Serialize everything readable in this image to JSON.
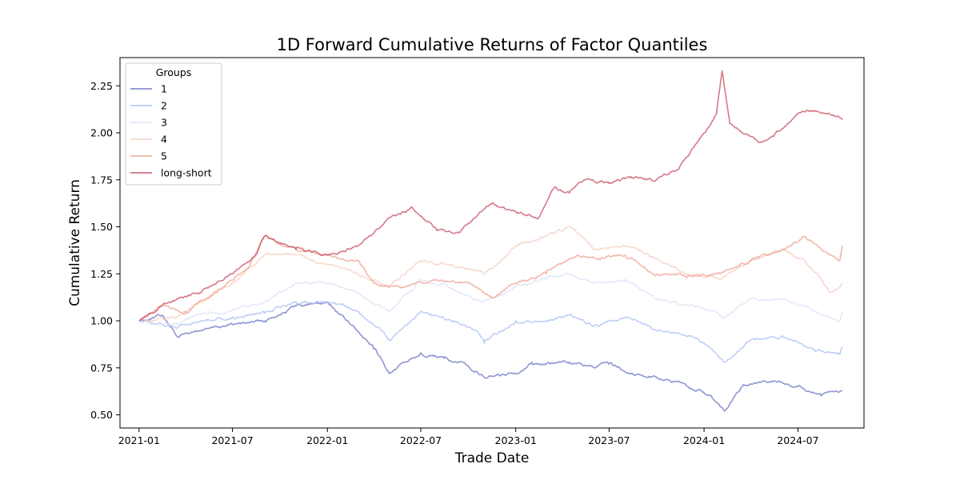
{
  "chart_data": {
    "type": "line",
    "title": "1D Forward Cumulative Returns of Factor Quantiles",
    "xlabel": "Trade Date",
    "ylabel": "Cumulative Return",
    "x_type": "date",
    "xlim": [
      "2020-11-25",
      "2024-11-06"
    ],
    "ylim": [
      0.43,
      2.4
    ],
    "xticks": [
      "2021-01",
      "2021-07",
      "2022-01",
      "2022-07",
      "2023-01",
      "2023-07",
      "2024-01",
      "2024-07"
    ],
    "yticks": [
      0.5,
      0.75,
      1.0,
      1.25,
      1.5,
      1.75,
      2.0,
      2.25
    ],
    "ytick_labels": [
      "0.50",
      "0.75",
      "1.00",
      "1.25",
      "1.50",
      "1.75",
      "2.00",
      "2.25"
    ],
    "grid": false,
    "legend": {
      "title": "Groups",
      "position": "top-left"
    },
    "series": [
      {
        "name": "1",
        "color": "#6a73c4",
        "points": [
          [
            "2021-01-01",
            1.0
          ],
          [
            "2021-02-15",
            1.03
          ],
          [
            "2021-03-15",
            0.92
          ],
          [
            "2021-05-01",
            0.95
          ],
          [
            "2021-07-01",
            0.98
          ],
          [
            "2021-09-01",
            1.0
          ],
          [
            "2021-11-01",
            1.08
          ],
          [
            "2022-01-01",
            1.1
          ],
          [
            "2022-02-15",
            0.98
          ],
          [
            "2022-04-01",
            0.85
          ],
          [
            "2022-05-01",
            0.72
          ],
          [
            "2022-06-01",
            0.78
          ],
          [
            "2022-07-01",
            0.83
          ],
          [
            "2022-08-15",
            0.8
          ],
          [
            "2022-10-01",
            0.76
          ],
          [
            "2022-11-01",
            0.7
          ],
          [
            "2023-01-01",
            0.72
          ],
          [
            "2023-02-01",
            0.78
          ],
          [
            "2023-03-01",
            0.77
          ],
          [
            "2023-04-15",
            0.78
          ],
          [
            "2023-06-01",
            0.75
          ],
          [
            "2023-07-01",
            0.77
          ],
          [
            "2023-08-15",
            0.72
          ],
          [
            "2023-10-01",
            0.7
          ],
          [
            "2023-12-01",
            0.65
          ],
          [
            "2024-01-15",
            0.6
          ],
          [
            "2024-02-10",
            0.52
          ],
          [
            "2024-03-15",
            0.65
          ],
          [
            "2024-05-15",
            0.68
          ],
          [
            "2024-07-01",
            0.65
          ],
          [
            "2024-08-15",
            0.6
          ],
          [
            "2024-09-25",
            0.63
          ]
        ]
      },
      {
        "name": "2",
        "color": "#a8c0f2",
        "points": [
          [
            "2021-01-01",
            1.0
          ],
          [
            "2021-03-15",
            0.96
          ],
          [
            "2021-05-01",
            1.0
          ],
          [
            "2021-07-01",
            1.02
          ],
          [
            "2021-09-01",
            1.04
          ],
          [
            "2021-11-01",
            1.1
          ],
          [
            "2022-01-01",
            1.1
          ],
          [
            "2022-03-01",
            1.05
          ],
          [
            "2022-04-15",
            0.95
          ],
          [
            "2022-05-01",
            0.9
          ],
          [
            "2022-07-01",
            1.05
          ],
          [
            "2022-09-01",
            1.0
          ],
          [
            "2022-10-15",
            0.95
          ],
          [
            "2022-11-01",
            0.88
          ],
          [
            "2023-01-01",
            1.0
          ],
          [
            "2023-03-01",
            1.0
          ],
          [
            "2023-04-15",
            1.03
          ],
          [
            "2023-06-01",
            0.97
          ],
          [
            "2023-08-01",
            1.02
          ],
          [
            "2023-10-01",
            0.95
          ],
          [
            "2023-12-01",
            0.92
          ],
          [
            "2024-01-15",
            0.85
          ],
          [
            "2024-02-10",
            0.78
          ],
          [
            "2024-04-01",
            0.9
          ],
          [
            "2024-06-01",
            0.92
          ],
          [
            "2024-08-01",
            0.85
          ],
          [
            "2024-09-20",
            0.82
          ],
          [
            "2024-09-25",
            0.86
          ]
        ]
      },
      {
        "name": "3",
        "color": "#d9e2f5",
        "points": [
          [
            "2021-01-01",
            1.0
          ],
          [
            "2021-03-15",
            0.98
          ],
          [
            "2021-05-01",
            1.04
          ],
          [
            "2021-07-01",
            1.06
          ],
          [
            "2021-09-01",
            1.1
          ],
          [
            "2021-11-01",
            1.2
          ],
          [
            "2022-01-01",
            1.2
          ],
          [
            "2022-03-01",
            1.15
          ],
          [
            "2022-05-01",
            1.05
          ],
          [
            "2022-07-01",
            1.22
          ],
          [
            "2022-09-01",
            1.17
          ],
          [
            "2022-11-01",
            1.1
          ],
          [
            "2023-01-01",
            1.18
          ],
          [
            "2023-03-01",
            1.22
          ],
          [
            "2023-04-15",
            1.25
          ],
          [
            "2023-06-01",
            1.2
          ],
          [
            "2023-08-01",
            1.22
          ],
          [
            "2023-10-01",
            1.12
          ],
          [
            "2023-12-01",
            1.08
          ],
          [
            "2024-01-15",
            1.05
          ],
          [
            "2024-02-10",
            1.02
          ],
          [
            "2024-04-01",
            1.12
          ],
          [
            "2024-06-01",
            1.12
          ],
          [
            "2024-08-01",
            1.05
          ],
          [
            "2024-09-20",
            1.0
          ],
          [
            "2024-09-25",
            1.05
          ]
        ]
      },
      {
        "name": "4",
        "color": "#f3cdbf",
        "points": [
          [
            "2021-01-01",
            1.0
          ],
          [
            "2021-03-15",
            1.02
          ],
          [
            "2021-05-01",
            1.1
          ],
          [
            "2021-07-01",
            1.2
          ],
          [
            "2021-09-01",
            1.35
          ],
          [
            "2021-11-01",
            1.35
          ],
          [
            "2022-01-01",
            1.3
          ],
          [
            "2022-03-01",
            1.25
          ],
          [
            "2022-05-01",
            1.18
          ],
          [
            "2022-07-01",
            1.32
          ],
          [
            "2022-09-01",
            1.3
          ],
          [
            "2022-11-01",
            1.25
          ],
          [
            "2023-01-01",
            1.4
          ],
          [
            "2023-03-01",
            1.45
          ],
          [
            "2023-04-15",
            1.5
          ],
          [
            "2023-06-01",
            1.38
          ],
          [
            "2023-08-01",
            1.4
          ],
          [
            "2023-10-01",
            1.33
          ],
          [
            "2023-12-01",
            1.25
          ],
          [
            "2024-02-01",
            1.22
          ],
          [
            "2024-04-01",
            1.32
          ],
          [
            "2024-06-01",
            1.38
          ],
          [
            "2024-07-15",
            1.32
          ],
          [
            "2024-09-01",
            1.15
          ],
          [
            "2024-09-25",
            1.2
          ]
        ]
      },
      {
        "name": "5",
        "color": "#ef9f8e",
        "points": [
          [
            "2021-01-01",
            1.0
          ],
          [
            "2021-02-15",
            1.08
          ],
          [
            "2021-04-01",
            1.05
          ],
          [
            "2021-06-01",
            1.15
          ],
          [
            "2021-08-01",
            1.28
          ],
          [
            "2021-09-01",
            1.45
          ],
          [
            "2021-11-01",
            1.38
          ],
          [
            "2022-01-01",
            1.35
          ],
          [
            "2022-03-01",
            1.32
          ],
          [
            "2022-04-01",
            1.2
          ],
          [
            "2022-06-01",
            1.18
          ],
          [
            "2022-08-01",
            1.22
          ],
          [
            "2022-10-01",
            1.2
          ],
          [
            "2022-11-15",
            1.12
          ],
          [
            "2023-01-01",
            1.2
          ],
          [
            "2023-03-01",
            1.25
          ],
          [
            "2023-05-01",
            1.35
          ],
          [
            "2023-06-15",
            1.33
          ],
          [
            "2023-08-01",
            1.35
          ],
          [
            "2023-10-01",
            1.25
          ],
          [
            "2023-12-01",
            1.24
          ],
          [
            "2024-02-01",
            1.25
          ],
          [
            "2024-04-01",
            1.32
          ],
          [
            "2024-06-01",
            1.38
          ],
          [
            "2024-07-15",
            1.45
          ],
          [
            "2024-09-01",
            1.35
          ],
          [
            "2024-09-20",
            1.32
          ],
          [
            "2024-09-25",
            1.4
          ]
        ]
      },
      {
        "name": "long-short",
        "color": "#c74d62",
        "points": [
          [
            "2021-01-01",
            1.0
          ],
          [
            "2021-03-01",
            1.1
          ],
          [
            "2021-05-01",
            1.15
          ],
          [
            "2021-07-01",
            1.25
          ],
          [
            "2021-08-15",
            1.35
          ],
          [
            "2021-09-01",
            1.45
          ],
          [
            "2021-11-01",
            1.38
          ],
          [
            "2022-01-01",
            1.35
          ],
          [
            "2022-03-01",
            1.4
          ],
          [
            "2022-04-15",
            1.5
          ],
          [
            "2022-05-01",
            1.55
          ],
          [
            "2022-06-15",
            1.6
          ],
          [
            "2022-08-01",
            1.48
          ],
          [
            "2022-09-15",
            1.47
          ],
          [
            "2022-10-15",
            1.55
          ],
          [
            "2022-11-15",
            1.62
          ],
          [
            "2023-01-01",
            1.58
          ],
          [
            "2023-02-15",
            1.55
          ],
          [
            "2023-03-15",
            1.7
          ],
          [
            "2023-04-15",
            1.68
          ],
          [
            "2023-05-15",
            1.75
          ],
          [
            "2023-07-01",
            1.73
          ],
          [
            "2023-08-15",
            1.76
          ],
          [
            "2023-10-01",
            1.75
          ],
          [
            "2023-11-15",
            1.82
          ],
          [
            "2024-01-01",
            2.0
          ],
          [
            "2024-01-25",
            2.1
          ],
          [
            "2024-02-05",
            2.33
          ],
          [
            "2024-02-20",
            2.05
          ],
          [
            "2024-03-15",
            2.0
          ],
          [
            "2024-04-15",
            1.95
          ],
          [
            "2024-05-15",
            1.98
          ],
          [
            "2024-07-01",
            2.1
          ],
          [
            "2024-08-01",
            2.12
          ],
          [
            "2024-09-01",
            2.1
          ],
          [
            "2024-09-25",
            2.07
          ]
        ]
      }
    ]
  }
}
